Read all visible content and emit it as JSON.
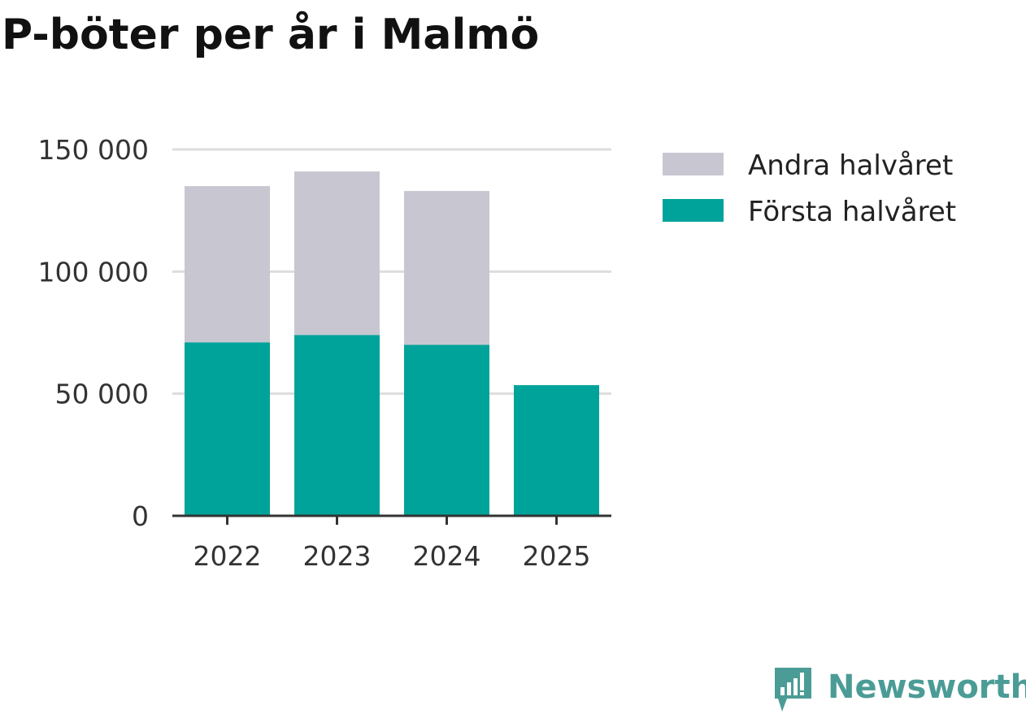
{
  "chart_data": {
    "type": "bar",
    "stacked": true,
    "title": "P-böter per år i Malmö",
    "xlabel": "",
    "ylabel": "",
    "categories": [
      "2022",
      "2023",
      "2024",
      "2025"
    ],
    "series": [
      {
        "name": "Första halvåret",
        "color": "#00a39a",
        "values": [
          71000,
          74000,
          70000,
          53500
        ]
      },
      {
        "name": "Andra halvåret",
        "color": "#c8c7d1",
        "values": [
          64000,
          67000,
          63000,
          0
        ]
      }
    ],
    "ylim": [
      0,
      150000
    ],
    "yticks": [
      0,
      50000,
      100000,
      150000
    ],
    "ytick_labels": [
      "0",
      "50 000",
      "100 000",
      "150 000"
    ],
    "grid": true,
    "legend": {
      "position": "top-right",
      "entries": [
        {
          "label": "Andra halvåret",
          "color": "#c8c7d1"
        },
        {
          "label": "Första halvåret",
          "color": "#00a39a"
        }
      ]
    }
  },
  "branding": {
    "logo_text": "Newsworthy",
    "logo_icon": "chart-bubble-icon",
    "logo_color": "#4b9c96"
  }
}
